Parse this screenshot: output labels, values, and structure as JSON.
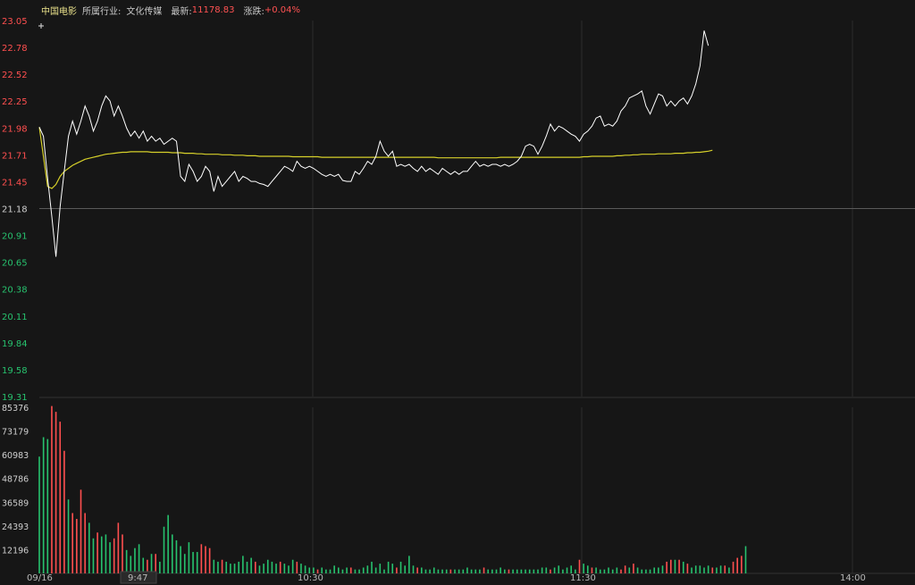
{
  "header": {
    "stock_name": "中国电影",
    "industry_label": "所属行业:",
    "industry_value": "文化传媒",
    "latest_label": "最新:",
    "latest_value": "11178.83",
    "change_label": "涨跌:",
    "change_value": "+0.04%"
  },
  "colors": {
    "background": "#161616",
    "grid": "#2c2c2c",
    "price_line": "#ffffff",
    "avg_line": "#d6d02a",
    "up": "#ff4f4f",
    "down": "#27c26e",
    "header_stock": "#e8e08a"
  },
  "chart_data": {
    "type": "line",
    "price_panel": {
      "y_ticks": [
        "23.05",
        "22.78",
        "22.52",
        "22.25",
        "21.98",
        "21.71",
        "21.45",
        "21.18",
        "20.91",
        "20.65",
        "20.38",
        "20.11",
        "19.84",
        "19.58",
        "19.31"
      ],
      "ylim": [
        19.31,
        23.05
      ],
      "reference_price": 21.18,
      "series": [
        {
          "kind": "price",
          "values": [
            21.99,
            21.9,
            21.48,
            21.1,
            20.7,
            21.2,
            21.55,
            21.9,
            22.05,
            21.92,
            22.05,
            22.2,
            22.1,
            21.95,
            22.05,
            22.2,
            22.3,
            22.25,
            22.1,
            22.2,
            22.1,
            21.98,
            21.9,
            21.95,
            21.88,
            21.95,
            21.85,
            21.9,
            21.85,
            21.88,
            21.82,
            21.85,
            21.88,
            21.85,
            21.5,
            21.45,
            21.62,
            21.55,
            21.45,
            21.5,
            21.6,
            21.55,
            21.35,
            21.5,
            21.4,
            21.45,
            21.5,
            21.55,
            21.45,
            21.5,
            21.48,
            21.45,
            21.45,
            21.43,
            21.42,
            21.4,
            21.45,
            21.5,
            21.55,
            21.6,
            21.58,
            21.55,
            21.65,
            21.6,
            21.58,
            21.6,
            21.58,
            21.55,
            21.52,
            21.5,
            21.52,
            21.5,
            21.52,
            21.46,
            21.45,
            21.45,
            21.55,
            21.52,
            21.58,
            21.65,
            21.62,
            21.7,
            21.85,
            21.75,
            21.7,
            21.75,
            21.6,
            21.62,
            21.6,
            21.62,
            21.58,
            21.55,
            21.6,
            21.55,
            21.58,
            21.55,
            21.52,
            21.58,
            21.55,
            21.52,
            21.55,
            21.52,
            21.55,
            21.55,
            21.6,
            21.65,
            21.6,
            21.62,
            21.6,
            21.62,
            21.62,
            21.6,
            21.62,
            21.6,
            21.62,
            21.65,
            21.7,
            21.8,
            21.82,
            21.8,
            21.72,
            21.8,
            21.9,
            22.02,
            21.95,
            22.0,
            21.98,
            21.95,
            21.92,
            21.9,
            21.85,
            21.92,
            21.95,
            22.0,
            22.08,
            22.1,
            22.0,
            22.02,
            22.0,
            22.05,
            22.15,
            22.2,
            22.28,
            22.3,
            22.32,
            22.35,
            22.2,
            22.12,
            22.22,
            22.32,
            22.3,
            22.2,
            22.25,
            22.2,
            22.25,
            22.28,
            22.22,
            22.3,
            22.42,
            22.6,
            22.95,
            22.8
          ]
        },
        {
          "kind": "average",
          "values": [
            21.99,
            21.7,
            21.4,
            21.38,
            21.42,
            21.5,
            21.55,
            21.58,
            21.61,
            21.63,
            21.65,
            21.67,
            21.68,
            21.69,
            21.7,
            21.71,
            21.72,
            21.725,
            21.73,
            21.735,
            21.74,
            21.74,
            21.745,
            21.745,
            21.745,
            21.745,
            21.745,
            21.74,
            21.74,
            21.74,
            21.74,
            21.74,
            21.735,
            21.735,
            21.735,
            21.73,
            21.73,
            21.73,
            21.725,
            21.725,
            21.72,
            21.72,
            21.72,
            21.72,
            21.715,
            21.715,
            21.715,
            21.71,
            21.71,
            21.71,
            21.705,
            21.705,
            21.705,
            21.7,
            21.7,
            21.7,
            21.7,
            21.7,
            21.7,
            21.7,
            21.7,
            21.695,
            21.695,
            21.695,
            21.695,
            21.695,
            21.695,
            21.695,
            21.69,
            21.69,
            21.69,
            21.69,
            21.69,
            21.69,
            21.69,
            21.69,
            21.69,
            21.69,
            21.69,
            21.69,
            21.69,
            21.69,
            21.69,
            21.69,
            21.69,
            21.69,
            21.69,
            21.69,
            21.69,
            21.69,
            21.69,
            21.69,
            21.69,
            21.69,
            21.69,
            21.69,
            21.685,
            21.685,
            21.685,
            21.685,
            21.685,
            21.685,
            21.685,
            21.685,
            21.685,
            21.685,
            21.685,
            21.685,
            21.685,
            21.685,
            21.685,
            21.69,
            21.69,
            21.69,
            21.69,
            21.69,
            21.69,
            21.69,
            21.69,
            21.69,
            21.69,
            21.69,
            21.69,
            21.69,
            21.69,
            21.69,
            21.69,
            21.69,
            21.69,
            21.69,
            21.69,
            21.695,
            21.695,
            21.7,
            21.7,
            21.7,
            21.7,
            21.7,
            21.7,
            21.705,
            21.705,
            21.71,
            21.71,
            21.715,
            21.715,
            21.72,
            21.72,
            21.72,
            21.72,
            21.725,
            21.725,
            21.725,
            21.725,
            21.73,
            21.73,
            21.73,
            21.735,
            21.735,
            21.74,
            21.74,
            21.745,
            21.75,
            21.76
          ]
        }
      ]
    },
    "volume_panel": {
      "y_ticks": [
        "85376",
        "73179",
        "60983",
        "48786",
        "36589",
        "24393",
        "12196"
      ],
      "ylim": [
        0,
        85376
      ],
      "bars": [
        {
          "v": 60000,
          "d": "d"
        },
        {
          "v": 70000,
          "d": "d"
        },
        {
          "v": 69000,
          "d": "d"
        },
        {
          "v": 86000,
          "d": "u"
        },
        {
          "v": 83000,
          "d": "u"
        },
        {
          "v": 78000,
          "d": "u"
        },
        {
          "v": 63000,
          "d": "u"
        },
        {
          "v": 38000,
          "d": "d"
        },
        {
          "v": 31000,
          "d": "u"
        },
        {
          "v": 28000,
          "d": "u"
        },
        {
          "v": 43000,
          "d": "u"
        },
        {
          "v": 31000,
          "d": "u"
        },
        {
          "v": 26000,
          "d": "d"
        },
        {
          "v": 18000,
          "d": "d"
        },
        {
          "v": 21000,
          "d": "u"
        },
        {
          "v": 19000,
          "d": "d"
        },
        {
          "v": 20000,
          "d": "d"
        },
        {
          "v": 16000,
          "d": "d"
        },
        {
          "v": 18000,
          "d": "u"
        },
        {
          "v": 26000,
          "d": "u"
        },
        {
          "v": 20000,
          "d": "u"
        },
        {
          "v": 12000,
          "d": "d"
        },
        {
          "v": 9000,
          "d": "d"
        },
        {
          "v": 13000,
          "d": "d"
        },
        {
          "v": 15000,
          "d": "d"
        },
        {
          "v": 8000,
          "d": "d"
        },
        {
          "v": 7000,
          "d": "u"
        },
        {
          "v": 10000,
          "d": "d"
        },
        {
          "v": 10000,
          "d": "u"
        },
        {
          "v": 6000,
          "d": "d"
        },
        {
          "v": 24000,
          "d": "d"
        },
        {
          "v": 30000,
          "d": "d"
        },
        {
          "v": 20000,
          "d": "d"
        },
        {
          "v": 17000,
          "d": "d"
        },
        {
          "v": 14000,
          "d": "d"
        },
        {
          "v": 10000,
          "d": "d"
        },
        {
          "v": 16000,
          "d": "d"
        },
        {
          "v": 11000,
          "d": "d"
        },
        {
          "v": 11000,
          "d": "d"
        },
        {
          "v": 15000,
          "d": "u"
        },
        {
          "v": 14000,
          "d": "u"
        },
        {
          "v": 13000,
          "d": "u"
        },
        {
          "v": 7000,
          "d": "d"
        },
        {
          "v": 6000,
          "d": "d"
        },
        {
          "v": 7000,
          "d": "u"
        },
        {
          "v": 6000,
          "d": "d"
        },
        {
          "v": 5000,
          "d": "d"
        },
        {
          "v": 5000,
          "d": "d"
        },
        {
          "v": 6000,
          "d": "d"
        },
        {
          "v": 9000,
          "d": "d"
        },
        {
          "v": 6000,
          "d": "d"
        },
        {
          "v": 8000,
          "d": "d"
        },
        {
          "v": 6000,
          "d": "u"
        },
        {
          "v": 4000,
          "d": "d"
        },
        {
          "v": 5000,
          "d": "d"
        },
        {
          "v": 7000,
          "d": "d"
        },
        {
          "v": 6000,
          "d": "d"
        },
        {
          "v": 5000,
          "d": "d"
        },
        {
          "v": 6000,
          "d": "u"
        },
        {
          "v": 5000,
          "d": "d"
        },
        {
          "v": 4000,
          "d": "d"
        },
        {
          "v": 7000,
          "d": "d"
        },
        {
          "v": 6000,
          "d": "u"
        },
        {
          "v": 5000,
          "d": "d"
        },
        {
          "v": 4000,
          "d": "d"
        },
        {
          "v": 3000,
          "d": "d"
        },
        {
          "v": 3000,
          "d": "d"
        },
        {
          "v": 2000,
          "d": "u"
        },
        {
          "v": 3000,
          "d": "d"
        },
        {
          "v": 2000,
          "d": "d"
        },
        {
          "v": 2000,
          "d": "d"
        },
        {
          "v": 4000,
          "d": "d"
        },
        {
          "v": 3000,
          "d": "d"
        },
        {
          "v": 2000,
          "d": "d"
        },
        {
          "v": 3000,
          "d": "d"
        },
        {
          "v": 3000,
          "d": "u"
        },
        {
          "v": 2000,
          "d": "d"
        },
        {
          "v": 2000,
          "d": "d"
        },
        {
          "v": 3000,
          "d": "d"
        },
        {
          "v": 4000,
          "d": "d"
        },
        {
          "v": 6000,
          "d": "d"
        },
        {
          "v": 3000,
          "d": "d"
        },
        {
          "v": 5000,
          "d": "d"
        },
        {
          "v": 2000,
          "d": "d"
        },
        {
          "v": 6000,
          "d": "d"
        },
        {
          "v": 5000,
          "d": "d"
        },
        {
          "v": 3000,
          "d": "u"
        },
        {
          "v": 6000,
          "d": "d"
        },
        {
          "v": 4000,
          "d": "d"
        },
        {
          "v": 9000,
          "d": "d"
        },
        {
          "v": 4000,
          "d": "d"
        },
        {
          "v": 3000,
          "d": "u"
        },
        {
          "v": 3000,
          "d": "d"
        },
        {
          "v": 2000,
          "d": "d"
        },
        {
          "v": 2000,
          "d": "d"
        },
        {
          "v": 3000,
          "d": "d"
        },
        {
          "v": 2000,
          "d": "d"
        },
        {
          "v": 2000,
          "d": "d"
        },
        {
          "v": 2000,
          "d": "d"
        },
        {
          "v": 2000,
          "d": "u"
        },
        {
          "v": 2000,
          "d": "d"
        },
        {
          "v": 2000,
          "d": "d"
        },
        {
          "v": 2000,
          "d": "d"
        },
        {
          "v": 3000,
          "d": "d"
        },
        {
          "v": 2000,
          "d": "d"
        },
        {
          "v": 2000,
          "d": "d"
        },
        {
          "v": 2000,
          "d": "d"
        },
        {
          "v": 3000,
          "d": "u"
        },
        {
          "v": 2000,
          "d": "d"
        },
        {
          "v": 2000,
          "d": "d"
        },
        {
          "v": 2000,
          "d": "d"
        },
        {
          "v": 3000,
          "d": "d"
        },
        {
          "v": 2000,
          "d": "d"
        },
        {
          "v": 2000,
          "d": "u"
        },
        {
          "v": 2000,
          "d": "d"
        },
        {
          "v": 2000,
          "d": "d"
        },
        {
          "v": 2000,
          "d": "d"
        },
        {
          "v": 2000,
          "d": "d"
        },
        {
          "v": 2000,
          "d": "d"
        },
        {
          "v": 2000,
          "d": "d"
        },
        {
          "v": 2000,
          "d": "d"
        },
        {
          "v": 3000,
          "d": "d"
        },
        {
          "v": 3000,
          "d": "d"
        },
        {
          "v": 2000,
          "d": "u"
        },
        {
          "v": 3000,
          "d": "d"
        },
        {
          "v": 4000,
          "d": "d"
        },
        {
          "v": 2000,
          "d": "d"
        },
        {
          "v": 3000,
          "d": "d"
        },
        {
          "v": 4000,
          "d": "d"
        },
        {
          "v": 2000,
          "d": "d"
        },
        {
          "v": 7000,
          "d": "u"
        },
        {
          "v": 5000,
          "d": "d"
        },
        {
          "v": 4000,
          "d": "d"
        },
        {
          "v": 3000,
          "d": "u"
        },
        {
          "v": 3000,
          "d": "d"
        },
        {
          "v": 2000,
          "d": "d"
        },
        {
          "v": 2000,
          "d": "d"
        },
        {
          "v": 3000,
          "d": "d"
        },
        {
          "v": 2000,
          "d": "d"
        },
        {
          "v": 3000,
          "d": "d"
        },
        {
          "v": 2000,
          "d": "u"
        },
        {
          "v": 4000,
          "d": "u"
        },
        {
          "v": 3000,
          "d": "d"
        },
        {
          "v": 5000,
          "d": "u"
        },
        {
          "v": 3000,
          "d": "d"
        },
        {
          "v": 2000,
          "d": "d"
        },
        {
          "v": 2000,
          "d": "d"
        },
        {
          "v": 2000,
          "d": "d"
        },
        {
          "v": 3000,
          "d": "d"
        },
        {
          "v": 3000,
          "d": "d"
        },
        {
          "v": 4000,
          "d": "d"
        },
        {
          "v": 6000,
          "d": "u"
        },
        {
          "v": 7000,
          "d": "u"
        },
        {
          "v": 7000,
          "d": "d"
        },
        {
          "v": 7000,
          "d": "u"
        },
        {
          "v": 6000,
          "d": "d"
        },
        {
          "v": 5000,
          "d": "u"
        },
        {
          "v": 3000,
          "d": "d"
        },
        {
          "v": 4000,
          "d": "d"
        },
        {
          "v": 4000,
          "d": "d"
        },
        {
          "v": 3000,
          "d": "d"
        },
        {
          "v": 4000,
          "d": "d"
        },
        {
          "v": 3000,
          "d": "u"
        },
        {
          "v": 3000,
          "d": "d"
        },
        {
          "v": 4000,
          "d": "d"
        },
        {
          "v": 4000,
          "d": "u"
        },
        {
          "v": 3000,
          "d": "d"
        },
        {
          "v": 6000,
          "d": "u"
        },
        {
          "v": 8000,
          "d": "u"
        },
        {
          "v": 9000,
          "d": "u"
        },
        {
          "v": 14000,
          "d": "d"
        }
      ]
    },
    "x_ticks": [
      "09/16",
      "9:47",
      "10:30",
      "11:30",
      "14:00"
    ],
    "grid": true
  }
}
